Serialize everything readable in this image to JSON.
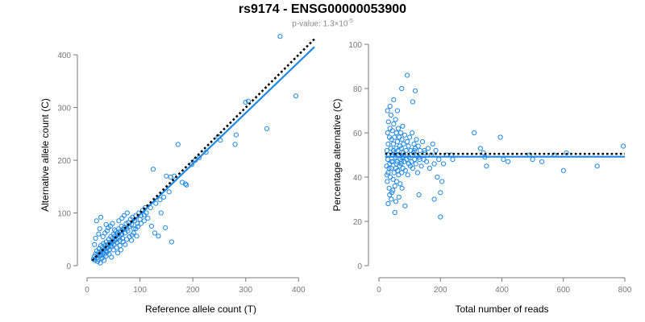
{
  "title": "rs9174 - ENSG00000053900",
  "subtitle": {
    "prefix": "p-value: 1.3×10",
    "exponent": "-5"
  },
  "colors": {
    "points": "#1f88e5",
    "fit": "#1f88e5",
    "reference": "#000000",
    "axis": "#777777"
  },
  "chart_data": [
    {
      "type": "scatter",
      "xlabel": "Reference allele count (T)",
      "ylabel": "Alternative allele count (C)",
      "xlim": [
        0,
        430
      ],
      "ylim": [
        0,
        420
      ],
      "xticks": [
        0,
        100,
        200,
        300,
        400
      ],
      "yticks": [
        0,
        100,
        200,
        300,
        400
      ],
      "fit_line": {
        "x": [
          10,
          430
        ],
        "y": [
          10,
          415
        ],
        "style": "solid"
      },
      "reference_line": {
        "x": [
          10,
          430
        ],
        "y": [
          10,
          430
        ],
        "style": "dotted"
      },
      "points": [
        [
          12,
          12
        ],
        [
          14,
          18
        ],
        [
          15,
          10
        ],
        [
          16,
          22
        ],
        [
          18,
          15
        ],
        [
          18,
          28
        ],
        [
          20,
          20
        ],
        [
          21,
          12
        ],
        [
          22,
          25
        ],
        [
          23,
          32
        ],
        [
          24,
          18
        ],
        [
          25,
          22
        ],
        [
          26,
          38
        ],
        [
          27,
          28
        ],
        [
          28,
          20
        ],
        [
          29,
          35
        ],
        [
          30,
          25
        ],
        [
          31,
          42
        ],
        [
          32,
          30
        ],
        [
          33,
          22
        ],
        [
          34,
          38
        ],
        [
          35,
          28
        ],
        [
          36,
          45
        ],
        [
          37,
          33
        ],
        [
          38,
          26
        ],
        [
          39,
          40
        ],
        [
          40,
          35
        ],
        [
          41,
          50
        ],
        [
          42,
          30
        ],
        [
          43,
          44
        ],
        [
          44,
          38
        ],
        [
          45,
          55
        ],
        [
          46,
          42
        ],
        [
          47,
          36
        ],
        [
          48,
          52
        ],
        [
          49,
          46
        ],
        [
          50,
          60
        ],
        [
          51,
          40
        ],
        [
          52,
          56
        ],
        [
          53,
          48
        ],
        [
          54,
          65
        ],
        [
          55,
          50
        ],
        [
          56,
          44
        ],
        [
          57,
          58
        ],
        [
          58,
          62
        ],
        [
          59,
          52
        ],
        [
          60,
          70
        ],
        [
          61,
          55
        ],
        [
          62,
          48
        ],
        [
          63,
          66
        ],
        [
          64,
          58
        ],
        [
          65,
          75
        ],
        [
          66,
          60
        ],
        [
          67,
          52
        ],
        [
          68,
          68
        ],
        [
          70,
          72
        ],
        [
          72,
          62
        ],
        [
          74,
          80
        ],
        [
          75,
          70
        ],
        [
          77,
          66
        ],
        [
          78,
          82
        ],
        [
          80,
          75
        ],
        [
          82,
          88
        ],
        [
          84,
          78
        ],
        [
          86,
          92
        ],
        [
          88,
          70
        ],
        [
          90,
          85
        ],
        [
          92,
          95
        ],
        [
          95,
          80
        ],
        [
          98,
          100
        ],
        [
          100,
          88
        ],
        [
          102,
          95
        ],
        [
          105,
          105
        ],
        [
          108,
          96
        ],
        [
          110,
          110
        ],
        [
          112,
          100
        ],
        [
          14,
          40
        ],
        [
          16,
          52
        ],
        [
          18,
          85
        ],
        [
          22,
          60
        ],
        [
          24,
          70
        ],
        [
          26,
          92
        ],
        [
          30,
          55
        ],
        [
          34,
          62
        ],
        [
          36,
          78
        ],
        [
          38,
          66
        ],
        [
          40,
          72
        ],
        [
          44,
          75
        ],
        [
          48,
          80
        ],
        [
          52,
          68
        ],
        [
          60,
          85
        ],
        [
          66,
          90
        ],
        [
          70,
          95
        ],
        [
          76,
          100
        ],
        [
          20,
          8
        ],
        [
          28,
          14
        ],
        [
          36,
          18
        ],
        [
          42,
          22
        ],
        [
          50,
          30
        ],
        [
          56,
          34
        ],
        [
          62,
          38
        ],
        [
          68,
          45
        ],
        [
          75,
          50
        ],
        [
          80,
          55
        ],
        [
          85,
          58
        ],
        [
          88,
          62
        ],
        [
          92,
          70
        ],
        [
          96,
          74
        ],
        [
          102,
          80
        ],
        [
          108,
          85
        ],
        [
          115,
          90
        ],
        [
          122,
          75
        ],
        [
          128,
          62
        ],
        [
          135,
          56
        ],
        [
          140,
          100
        ],
        [
          148,
          72
        ],
        [
          160,
          45
        ],
        [
          125,
          183
        ],
        [
          150,
          170
        ],
        [
          158,
          168
        ],
        [
          165,
          170
        ],
        [
          172,
          230
        ],
        [
          180,
          158
        ],
        [
          186,
          155
        ],
        [
          188,
          153
        ],
        [
          198,
          192
        ],
        [
          205,
          200
        ],
        [
          212,
          205
        ],
        [
          225,
          215
        ],
        [
          248,
          245
        ],
        [
          252,
          238
        ],
        [
          280,
          230
        ],
        [
          282,
          248
        ],
        [
          300,
          310
        ],
        [
          305,
          312
        ],
        [
          340,
          260
        ],
        [
          365,
          435
        ],
        [
          395,
          322
        ],
        [
          120,
          110
        ],
        [
          130,
          118
        ],
        [
          138,
          125
        ],
        [
          145,
          130
        ],
        [
          155,
          140
        ],
        [
          25,
          5
        ],
        [
          32,
          10
        ],
        [
          46,
          16
        ],
        [
          58,
          24
        ],
        [
          64,
          30
        ],
        [
          72,
          40
        ],
        [
          84,
          48
        ],
        [
          94,
          56
        ]
      ]
    },
    {
      "type": "scatter",
      "xlabel": "Total number of reads",
      "ylabel": "Percentage alternative (C)",
      "xlim": [
        0,
        800
      ],
      "ylim": [
        0,
        100
      ],
      "xticks": [
        0,
        200,
        400,
        600,
        800
      ],
      "yticks": [
        0,
        20,
        40,
        60,
        80,
        100
      ],
      "fit_line": {
        "x": [
          20,
          800
        ],
        "y": [
          49.2,
          49.2
        ],
        "style": "solid"
      },
      "reference_line": {
        "x": [
          20,
          800
        ],
        "y": [
          50.5,
          50.5
        ],
        "style": "dotted"
      },
      "points": [
        [
          25,
          45
        ],
        [
          26,
          52
        ],
        [
          27,
          38
        ],
        [
          28,
          60
        ],
        [
          29,
          48
        ],
        [
          30,
          55
        ],
        [
          30,
          42
        ],
        [
          31,
          65
        ],
        [
          32,
          50
        ],
        [
          33,
          35
        ],
        [
          34,
          58
        ],
        [
          35,
          46
        ],
        [
          36,
          62
        ],
        [
          37,
          40
        ],
        [
          38,
          53
        ],
        [
          39,
          68
        ],
        [
          40,
          44
        ],
        [
          41,
          57
        ],
        [
          42,
          33
        ],
        [
          43,
          50
        ],
        [
          44,
          61
        ],
        [
          45,
          47
        ],
        [
          46,
          39
        ],
        [
          47,
          55
        ],
        [
          48,
          64
        ],
        [
          49,
          42
        ],
        [
          50,
          51
        ],
        [
          51,
          58
        ],
        [
          52,
          36
        ],
        [
          53,
          49
        ],
        [
          54,
          66
        ],
        [
          55,
          44
        ],
        [
          56,
          53
        ],
        [
          57,
          60
        ],
        [
          58,
          38
        ],
        [
          59,
          47
        ],
        [
          60,
          56
        ],
        [
          61,
          43
        ],
        [
          62,
          52
        ],
        [
          63,
          62
        ],
        [
          64,
          41
        ],
        [
          65,
          50
        ],
        [
          66,
          58
        ],
        [
          67,
          45
        ],
        [
          68,
          54
        ],
        [
          69,
          37
        ],
        [
          70,
          48
        ],
        [
          71,
          60
        ],
        [
          72,
          46
        ],
        [
          73,
          53
        ],
        [
          74,
          42
        ],
        [
          75,
          57
        ],
        [
          76,
          49
        ],
        [
          77,
          63
        ],
        [
          78,
          44
        ],
        [
          79,
          51
        ],
        [
          80,
          55
        ],
        [
          82,
          47
        ],
        [
          84,
          59
        ],
        [
          86,
          43
        ],
        [
          88,
          52
        ],
        [
          90,
          48
        ],
        [
          92,
          56
        ],
        [
          94,
          41
        ],
        [
          96,
          54
        ],
        [
          98,
          49
        ],
        [
          100,
          58
        ],
        [
          102,
          45
        ],
        [
          104,
          52
        ],
        [
          106,
          47
        ],
        [
          108,
          60
        ],
        [
          110,
          44
        ],
        [
          112,
          51
        ],
        [
          114,
          55
        ],
        [
          116,
          48
        ],
        [
          118,
          53
        ],
        [
          120,
          46
        ],
        [
          122,
          57
        ],
        [
          124,
          50
        ],
        [
          126,
          42
        ],
        [
          128,
          54
        ],
        [
          130,
          49
        ],
        [
          134,
          52
        ],
        [
          138,
          45
        ],
        [
          142,
          56
        ],
        [
          146,
          48
        ],
        [
          150,
          51
        ],
        [
          155,
          47
        ],
        [
          160,
          53
        ],
        [
          165,
          44
        ],
        [
          170,
          50
        ],
        [
          175,
          55
        ],
        [
          180,
          46
        ],
        [
          185,
          52
        ],
        [
          190,
          40
        ],
        [
          195,
          48
        ],
        [
          200,
          33
        ],
        [
          30,
          28
        ],
        [
          35,
          32
        ],
        [
          40,
          30
        ],
        [
          45,
          34
        ],
        [
          55,
          29
        ],
        [
          65,
          31
        ],
        [
          75,
          35
        ],
        [
          28,
          70
        ],
        [
          36,
          72
        ],
        [
          48,
          75
        ],
        [
          60,
          70
        ],
        [
          74,
          80
        ],
        [
          92,
          86
        ],
        [
          110,
          74
        ],
        [
          118,
          79
        ],
        [
          52,
          24
        ],
        [
          85,
          27
        ],
        [
          130,
          32
        ],
        [
          180,
          30
        ],
        [
          200,
          22
        ],
        [
          205,
          38
        ],
        [
          210,
          46
        ],
        [
          220,
          50
        ],
        [
          235,
          50
        ],
        [
          240,
          48
        ],
        [
          310,
          60
        ],
        [
          330,
          53
        ],
        [
          340,
          51
        ],
        [
          345,
          49
        ],
        [
          350,
          45
        ],
        [
          395,
          58
        ],
        [
          405,
          48
        ],
        [
          420,
          47
        ],
        [
          490,
          50
        ],
        [
          500,
          48
        ],
        [
          530,
          47
        ],
        [
          570,
          50
        ],
        [
          600,
          43
        ],
        [
          610,
          51
        ],
        [
          710,
          45
        ],
        [
          795,
          54
        ],
        [
          26,
          41
        ],
        [
          33,
          44
        ],
        [
          41,
          47
        ],
        [
          47,
          52
        ],
        [
          57,
          46
        ],
        [
          63,
          50
        ],
        [
          73,
          47
        ],
        [
          81,
          50
        ],
        [
          97,
          46
        ],
        [
          115,
          52
        ],
        [
          132,
          48
        ],
        [
          148,
          52
        ]
      ]
    }
  ]
}
